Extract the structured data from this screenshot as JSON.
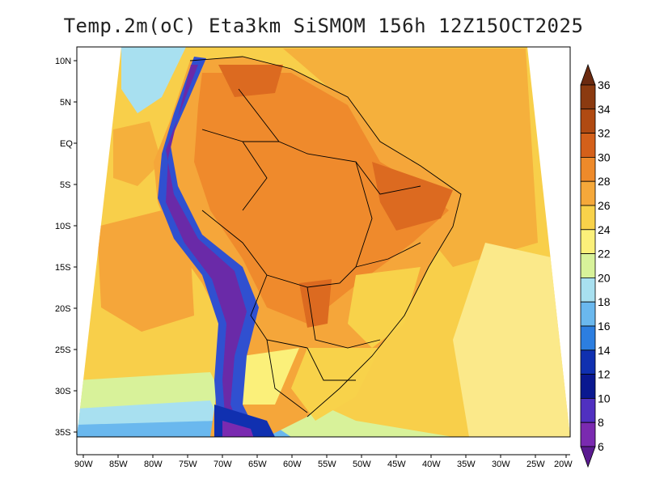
{
  "title": "Temp.2m(oC)  Eta3km  SiSMOM  156h  12Z15OCT2025",
  "lat_labels": [
    "10N",
    "5N",
    "EQ",
    "5S",
    "10S",
    "15S",
    "20S",
    "25S",
    "30S",
    "35S"
  ],
  "lon_labels": [
    "90W",
    "85W",
    "80W",
    "75W",
    "70W",
    "65W",
    "60W",
    "55W",
    "50W",
    "45W",
    "40W",
    "35W",
    "30W",
    "25W",
    "20W"
  ],
  "colorbar": {
    "labels": [
      "36",
      "34",
      "32",
      "30",
      "28",
      "26",
      "24",
      "22",
      "20",
      "18",
      "16",
      "14",
      "12",
      "10",
      "8",
      "6"
    ],
    "colors": [
      "#6b2a10",
      "#8b3a10",
      "#b04a12",
      "#d4601a",
      "#ee8a2a",
      "#f5a83a",
      "#f8d24a",
      "#fbf07a",
      "#d8f29a",
      "#a8e0f0",
      "#6ab8ee",
      "#2c7ee0",
      "#1030b0",
      "#0a1890",
      "#5030c0",
      "#7a2ab0",
      "#5a1a90"
    ]
  },
  "palette": {
    "ocean_far": "#f8cf4a",
    "ocean_warm": "#f5b03c",
    "ocean_cool": "#fbe98a",
    "land_hot": "#ef8a2c",
    "land_warm": "#f5a63a",
    "land_very_hot": "#dc6a20",
    "andes_cold": "#6a2aa8",
    "andes_mid": "#3050d0",
    "south_cool": "#d8f29a",
    "coast_cold": "#6ab8ee"
  }
}
